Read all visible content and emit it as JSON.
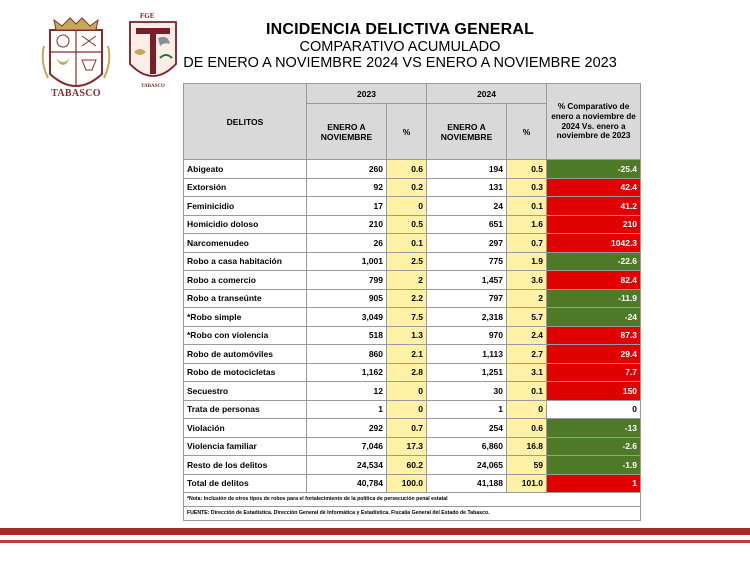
{
  "logos": {
    "left_caption": "TABASCO",
    "right_top": "FGE",
    "right_caption": "TABASCO",
    "colors": {
      "maroon": "#8b2a2a",
      "gold": "#c9a75a"
    }
  },
  "header": {
    "title": "INCIDENCIA DELICTIVA GENERAL",
    "subtitle": "COMPARATIVO ACUMULADO",
    "period": "DE ENERO A NOVIEMBRE 2024 VS ENERO A NOVIEMBRE 2023"
  },
  "table": {
    "col_delitos": "DELITOS",
    "year_a": "2023",
    "year_b": "2024",
    "sub_period": "ENERO A NOVIEMBRE",
    "pct_label": "%",
    "comparison_label": "% Comparativo de enero a noviembre de 2024 Vs. enero a noviembre de 2023",
    "rows": [
      {
        "name": "Abigeato",
        "v2023": "260",
        "p2023": "0.6",
        "v2024": "194",
        "p2024": "0.5",
        "cmp": "-25.4",
        "sign": "neg"
      },
      {
        "name": "Extorsión",
        "v2023": "92",
        "p2023": "0.2",
        "v2024": "131",
        "p2024": "0.3",
        "cmp": "42.4",
        "sign": "pos"
      },
      {
        "name": "Feminicidio",
        "v2023": "17",
        "p2023": "0",
        "v2024": "24",
        "p2024": "0.1",
        "cmp": "41.2",
        "sign": "pos"
      },
      {
        "name": "Homicidio doloso",
        "v2023": "210",
        "p2023": "0.5",
        "v2024": "651",
        "p2024": "1.6",
        "cmp": "210",
        "sign": "pos"
      },
      {
        "name": "Narcomenudeo",
        "v2023": "26",
        "p2023": "0.1",
        "v2024": "297",
        "p2024": "0.7",
        "cmp": "1042.3",
        "sign": "pos"
      },
      {
        "name": "Robo a casa habitación",
        "v2023": "1,001",
        "p2023": "2.5",
        "v2024": "775",
        "p2024": "1.9",
        "cmp": "-22.6",
        "sign": "neg"
      },
      {
        "name": "Robo a comercio",
        "v2023": "799",
        "p2023": "2",
        "v2024": "1,457",
        "p2024": "3.6",
        "cmp": "82.4",
        "sign": "pos"
      },
      {
        "name": "Robo a transeúnte",
        "v2023": "905",
        "p2023": "2.2",
        "v2024": "797",
        "p2024": "2",
        "cmp": "-11.9",
        "sign": "neg"
      },
      {
        "name": "*Robo simple",
        "v2023": "3,049",
        "p2023": "7.5",
        "v2024": "2,318",
        "p2024": "5.7",
        "cmp": "-24",
        "sign": "neg"
      },
      {
        "name": "*Robo con violencia",
        "v2023": "518",
        "p2023": "1.3",
        "v2024": "970",
        "p2024": "2.4",
        "cmp": "87.3",
        "sign": "pos"
      },
      {
        "name": "Robo de automóviles",
        "v2023": "860",
        "p2023": "2.1",
        "v2024": "1,113",
        "p2024": "2.7",
        "cmp": "29.4",
        "sign": "pos"
      },
      {
        "name": "Robo de motocicletas",
        "v2023": "1,162",
        "p2023": "2.8",
        "v2024": "1,251",
        "p2024": "3.1",
        "cmp": "7.7",
        "sign": "pos"
      },
      {
        "name": "Secuestro",
        "v2023": "12",
        "p2023": "0",
        "v2024": "30",
        "p2024": "0.1",
        "cmp": "150",
        "sign": "pos"
      },
      {
        "name": "Trata de personas",
        "v2023": "1",
        "p2023": "0",
        "v2024": "1",
        "p2024": "0",
        "cmp": "0",
        "sign": "zero"
      },
      {
        "name": "Violación",
        "v2023": "292",
        "p2023": "0.7",
        "v2024": "254",
        "p2024": "0.6",
        "cmp": "-13",
        "sign": "neg"
      },
      {
        "name": "Violencia familiar",
        "v2023": "7,046",
        "p2023": "17.3",
        "v2024": "6,860",
        "p2024": "16.8",
        "cmp": "-2.6",
        "sign": "neg"
      },
      {
        "name": "Resto de los delitos",
        "v2023": "24,534",
        "p2023": "60.2",
        "v2024": "24,065",
        "p2024": "59",
        "cmp": "-1.9",
        "sign": "neg"
      }
    ],
    "total": {
      "name": "Total de delitos",
      "v2023": "40,784",
      "p2023": "100.0",
      "v2024": "41,188",
      "p2024": "101.0",
      "cmp": "1",
      "sign": "pos"
    },
    "note": "*Nota: Inclusión de otros tipos de robos para el fortalecimiento de la política de persecución penal estatal",
    "source": "FUENTE: Dirección de Estadística. Dirección General de Informática y Estadística. Fiscalía General del Estado de Tabasco."
  },
  "colors": {
    "negative": "#4e7a27",
    "positive": "#e00000",
    "pct_bg": "#fff2a6",
    "header_bg": "#d9d9d9",
    "band": "#a52a2a"
  }
}
